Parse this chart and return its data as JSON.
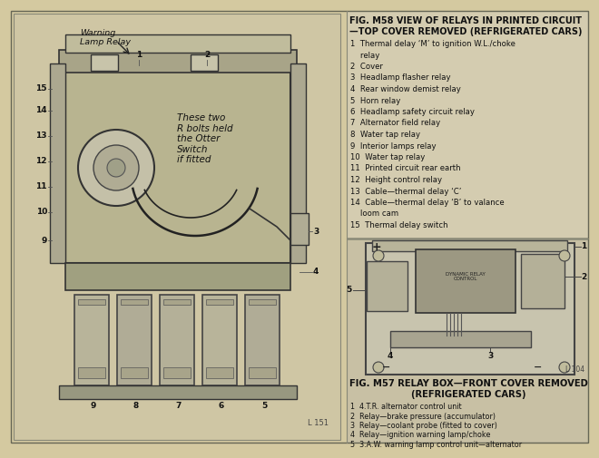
{
  "background_color": "#d4c9a0",
  "left_panel_bg": "#cfc6a4",
  "right_top_bg": "#d4ccb0",
  "right_bottom_bg": "#c8c0a4",
  "title_m58_line1": "FIG. M58 VIEW OF RELAYS IN PRINTED CIRCUIT",
  "title_m58_line2": "—TOP COVER REMOVED (REFRIGERATED CARS)",
  "items_m58": [
    "1  Thermal delay ‘M’ to ignition W.L./choke",
    "    relay",
    "2  Cover",
    "3  Headlamp flasher relay",
    "4  Rear window demist relay",
    "5  Horn relay",
    "6  Headlamp safety circuit relay",
    "7  Alternator field relay",
    "8  Water tap relay",
    "9  Interior lamps relay",
    "10  Water tap relay",
    "11  Printed circuit rear earth",
    "12  Height control relay",
    "13  Cable—thermal delay ‘C’",
    "14  Cable—thermal delay ‘B’ to valance",
    "    loom cam",
    "15  Thermal delay switch"
  ],
  "title_m57_line1": "FIG. M57 RELAY BOX—FRONT COVER REMOVED",
  "title_m57_line2": "(REFRIGERATED CARS)",
  "items_m57": [
    "1  4.T.R. alternator control unit",
    "2  Relay—brake pressure (accumulator)",
    "3  Relay—coolant probe (fitted to cover)",
    "4  Relay—ignition warning lamp/choke",
    "5  3.A.W. warning lamp control unit—alternator"
  ],
  "fig_label_left": "L 151",
  "fig_label_right": "L 104",
  "annotation_text": "Warning\nLamp Relay",
  "note_text": "These two\nR bolts held\nthe Otter\nSwitch\nif fitted"
}
